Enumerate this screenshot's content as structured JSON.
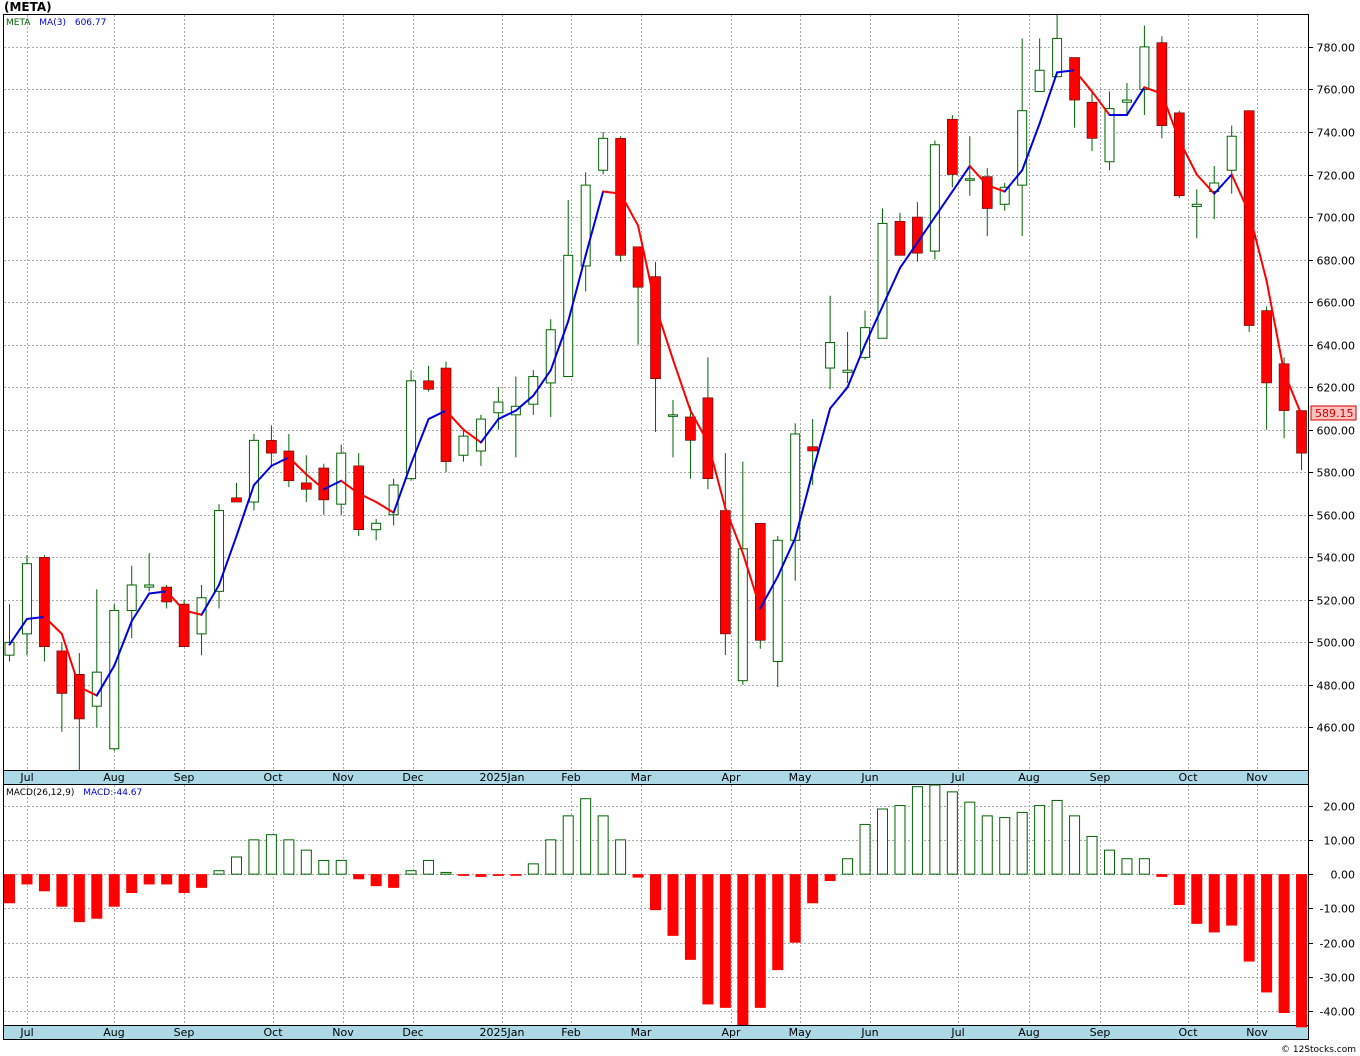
{
  "title": "(META)",
  "legend": {
    "ticker": "META",
    "ma_label": "MA(3)",
    "ma_value": "606.77",
    "macd_label": "MACD(26,12,9)",
    "macd_value_label": "MACD:-44.67"
  },
  "last_price_label": "589.15",
  "credit": "© 12Stocks.com",
  "colors": {
    "up": "#006400",
    "down": "#ff0000",
    "ma_up": "#0000dd",
    "ma_down": "#ff0000",
    "axis_strip": "#add8e6",
    "grid": "#aaaaaa",
    "price_tag_bg": "#ffc0c0",
    "price_tag_text": "#cc0000"
  },
  "month_labels": [
    "Jul",
    "Aug",
    "Sep",
    "Oct",
    "Nov",
    "Dec",
    "2025Jan",
    "Feb",
    "Mar",
    "Apr",
    "May",
    "Jun",
    "Jul",
    "Aug",
    "Sep",
    "Oct",
    "Nov"
  ],
  "chart_data": [
    {
      "type": "candlestick",
      "title": "(META)",
      "ylim": [
        440,
        795
      ],
      "yticks": [
        460,
        480,
        500,
        520,
        540,
        560,
        580,
        600,
        620,
        640,
        660,
        680,
        700,
        720,
        740,
        760,
        780
      ],
      "series_ma_name": "MA(3)",
      "candles": [
        {
          "o": 494,
          "h": 518,
          "l": 491,
          "c": 500
        },
        {
          "o": 504,
          "h": 541,
          "l": 494,
          "c": 537
        },
        {
          "o": 540,
          "h": 541,
          "l": 491,
          "c": 498
        },
        {
          "o": 496,
          "h": 500,
          "l": 458,
          "c": 476
        },
        {
          "o": 485,
          "h": 495,
          "l": 440,
          "c": 464
        },
        {
          "o": 470,
          "h": 525,
          "l": 460,
          "c": 486
        },
        {
          "o": 450,
          "h": 518,
          "l": 449,
          "c": 515
        },
        {
          "o": 515,
          "h": 536,
          "l": 502,
          "c": 527
        },
        {
          "o": 526,
          "h": 542,
          "l": 524,
          "c": 527
        },
        {
          "o": 526,
          "h": 527,
          "l": 516,
          "c": 519
        },
        {
          "o": 518,
          "h": 520,
          "l": 498,
          "c": 498
        },
        {
          "o": 504,
          "h": 527,
          "l": 494,
          "c": 521
        },
        {
          "o": 524,
          "h": 565,
          "l": 516,
          "c": 562
        },
        {
          "o": 568,
          "h": 575,
          "l": 566,
          "c": 566
        },
        {
          "o": 566,
          "h": 598,
          "l": 562,
          "c": 595
        },
        {
          "o": 595,
          "h": 602,
          "l": 583,
          "c": 589
        },
        {
          "o": 590,
          "h": 598,
          "l": 573,
          "c": 576
        },
        {
          "o": 575,
          "h": 588,
          "l": 566,
          "c": 572
        },
        {
          "o": 582,
          "h": 584,
          "l": 560,
          "c": 567
        },
        {
          "o": 565,
          "h": 593,
          "l": 560,
          "c": 589
        },
        {
          "o": 583,
          "h": 589,
          "l": 550,
          "c": 553
        },
        {
          "o": 553,
          "h": 558,
          "l": 548,
          "c": 556
        },
        {
          "o": 560,
          "h": 577,
          "l": 555,
          "c": 574
        },
        {
          "o": 577,
          "h": 628,
          "l": 576,
          "c": 623
        },
        {
          "o": 623,
          "h": 630,
          "l": 618,
          "c": 619
        },
        {
          "o": 629,
          "h": 632,
          "l": 580,
          "c": 585
        },
        {
          "o": 588,
          "h": 600,
          "l": 585,
          "c": 597
        },
        {
          "o": 590,
          "h": 607,
          "l": 583,
          "c": 605
        },
        {
          "o": 608,
          "h": 620,
          "l": 600,
          "c": 613
        },
        {
          "o": 607,
          "h": 625,
          "l": 587,
          "c": 611
        },
        {
          "o": 612,
          "h": 628,
          "l": 607,
          "c": 625
        },
        {
          "o": 622,
          "h": 652,
          "l": 606,
          "c": 647
        },
        {
          "o": 625,
          "h": 708,
          "l": 625,
          "c": 682
        },
        {
          "o": 677,
          "h": 721,
          "l": 665,
          "c": 715
        },
        {
          "o": 722,
          "h": 740,
          "l": 720,
          "c": 737
        },
        {
          "o": 737,
          "h": 738,
          "l": 679,
          "c": 682
        },
        {
          "o": 686,
          "h": 685,
          "l": 640,
          "c": 667
        },
        {
          "o": 672,
          "h": 679,
          "l": 599,
          "c": 624
        },
        {
          "o": 607,
          "h": 614,
          "l": 587,
          "c": 607
        },
        {
          "o": 606,
          "h": 611,
          "l": 577,
          "c": 595
        },
        {
          "o": 615,
          "h": 634,
          "l": 572,
          "c": 577
        },
        {
          "o": 562,
          "h": 589,
          "l": 494,
          "c": 504
        },
        {
          "o": 482,
          "h": 585,
          "l": 480,
          "c": 544
        },
        {
          "o": 556,
          "h": 556,
          "l": 497,
          "c": 501
        },
        {
          "o": 491,
          "h": 550,
          "l": 479,
          "c": 548
        },
        {
          "o": 548,
          "h": 603,
          "l": 529,
          "c": 598
        },
        {
          "o": 592,
          "h": 605,
          "l": 574,
          "c": 590
        },
        {
          "o": 629,
          "h": 663,
          "l": 619,
          "c": 641
        },
        {
          "o": 627,
          "h": 646,
          "l": 622,
          "c": 628
        },
        {
          "o": 634,
          "h": 656,
          "l": 633,
          "c": 648
        },
        {
          "o": 643,
          "h": 704,
          "l": 643,
          "c": 697
        },
        {
          "o": 698,
          "h": 702,
          "l": 682,
          "c": 682
        },
        {
          "o": 700,
          "h": 707,
          "l": 679,
          "c": 683
        },
        {
          "o": 684,
          "h": 736,
          "l": 680,
          "c": 734
        },
        {
          "o": 746,
          "h": 748,
          "l": 714,
          "c": 720
        },
        {
          "o": 718,
          "h": 738,
          "l": 710,
          "c": 718
        },
        {
          "o": 719,
          "h": 723,
          "l": 691,
          "c": 704
        },
        {
          "o": 706,
          "h": 716,
          "l": 703,
          "c": 714
        },
        {
          "o": 715,
          "h": 784,
          "l": 691,
          "c": 750
        },
        {
          "o": 759,
          "h": 784,
          "l": 759,
          "c": 769
        },
        {
          "o": 766,
          "h": 795,
          "l": 766,
          "c": 784
        },
        {
          "o": 775,
          "h": 775,
          "l": 742,
          "c": 755
        },
        {
          "o": 754,
          "h": 759,
          "l": 731,
          "c": 737
        },
        {
          "o": 726,
          "h": 759,
          "l": 722,
          "c": 751
        },
        {
          "o": 754,
          "h": 763,
          "l": 748,
          "c": 755
        },
        {
          "o": 760,
          "h": 790,
          "l": 748,
          "c": 780
        },
        {
          "o": 782,
          "h": 785,
          "l": 737,
          "c": 743
        },
        {
          "o": 749,
          "h": 750,
          "l": 709,
          "c": 710
        },
        {
          "o": 705,
          "h": 713,
          "l": 690,
          "c": 706
        },
        {
          "o": 712,
          "h": 724,
          "l": 699,
          "c": 716
        },
        {
          "o": 722,
          "h": 743,
          "l": 711,
          "c": 738
        },
        {
          "o": 750,
          "h": 750,
          "l": 646,
          "c": 649
        },
        {
          "o": 656,
          "h": 658,
          "l": 600,
          "c": 622
        },
        {
          "o": 631,
          "h": 634,
          "l": 596,
          "c": 609
        },
        {
          "o": 609,
          "h": 609,
          "l": 581,
          "c": 589
        }
      ],
      "ma3": [
        499,
        511,
        512,
        504,
        479,
        475,
        489,
        510,
        523,
        524,
        515,
        513,
        527,
        550,
        574,
        583,
        587,
        579,
        572,
        576,
        570,
        566,
        561,
        584,
        605,
        609,
        600,
        594,
        605,
        609,
        616,
        628,
        651,
        682,
        712,
        711,
        696,
        658,
        633,
        609,
        594,
        563,
        542,
        516,
        531,
        549,
        580,
        610,
        620,
        640,
        658,
        676,
        688,
        700,
        712,
        724,
        715,
        712,
        722,
        744,
        768,
        769,
        759,
        748,
        748,
        761,
        758,
        736,
        720,
        711,
        720,
        702,
        670,
        627,
        607
      ]
    },
    {
      "type": "bar",
      "title": "MACD(26,12,9)",
      "ylim": [
        -44,
        26
      ],
      "yticks": [
        -40,
        -30,
        -20,
        -10,
        0,
        10,
        20
      ],
      "values": [
        -8.5,
        -3,
        -5,
        -9.5,
        -14,
        -13,
        -9.5,
        -5.5,
        -3,
        -3,
        -5.5,
        -4,
        1,
        5,
        10,
        11.5,
        10,
        7,
        4,
        4,
        -1.5,
        -3.5,
        -4,
        1,
        4,
        0.5,
        -0.5,
        -0.8,
        -0.5,
        -0.5,
        3,
        10,
        17,
        22,
        17,
        10,
        -1,
        -10.5,
        -18,
        -25,
        -38,
        -39,
        -44,
        -39,
        -28,
        -20,
        -8.5,
        -2,
        4.5,
        14.5,
        19,
        20,
        25.5,
        26,
        24,
        21,
        17,
        16.5,
        18,
        20,
        21.5,
        17,
        11,
        7,
        4.5,
        4.5,
        -0.8,
        -9,
        -14.5,
        -17,
        -15,
        -25.5,
        -34.5,
        -40.5,
        -44.67
      ]
    }
  ]
}
